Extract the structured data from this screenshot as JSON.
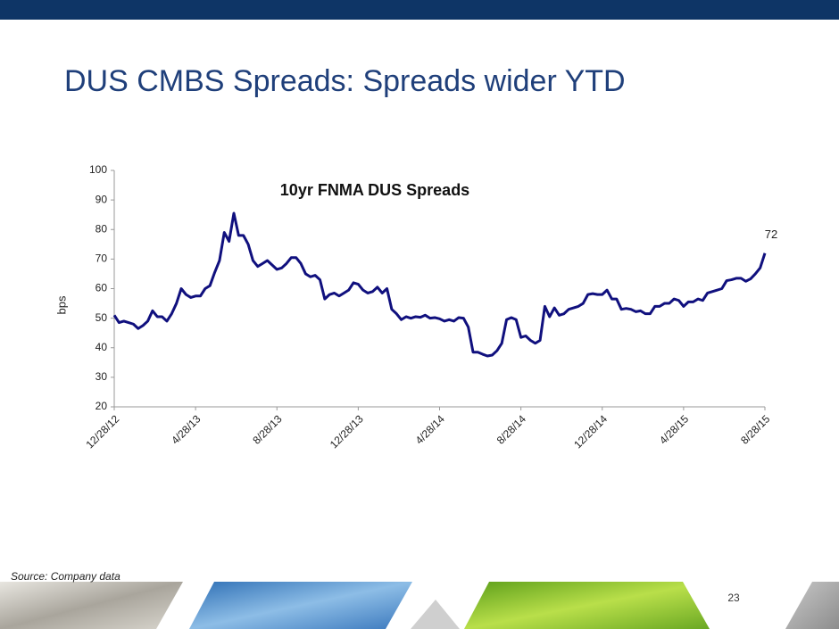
{
  "title": "DUS CMBS Spreads: Spreads wider YTD",
  "source": "Source: Company data",
  "page_number": "23",
  "chart_data": {
    "type": "line",
    "title": "10yr FNMA DUS Spreads",
    "y_label": "bps",
    "categories": [
      "12/28/12",
      null,
      null,
      null,
      null,
      null,
      null,
      null,
      null,
      null,
      null,
      null,
      null,
      null,
      null,
      null,
      null,
      "4/28/13",
      null,
      null,
      null,
      null,
      null,
      null,
      null,
      null,
      null,
      null,
      null,
      null,
      null,
      null,
      null,
      null,
      "8/28/13",
      null,
      null,
      null,
      null,
      null,
      null,
      null,
      null,
      null,
      null,
      null,
      null,
      null,
      null,
      null,
      null,
      "12/28/13",
      null,
      null,
      null,
      null,
      null,
      null,
      null,
      null,
      null,
      null,
      null,
      null,
      null,
      null,
      null,
      null,
      "4/28/14",
      null,
      null,
      null,
      null,
      null,
      null,
      null,
      null,
      null,
      null,
      null,
      null,
      null,
      null,
      null,
      null,
      "8/28/14",
      null,
      null,
      null,
      null,
      null,
      null,
      null,
      null,
      null,
      null,
      null,
      null,
      null,
      null,
      null,
      null,
      "12/28/14",
      null,
      null,
      null,
      null,
      null,
      null,
      null,
      null,
      null,
      null,
      null,
      null,
      null,
      null,
      null,
      null,
      "4/28/15",
      null,
      null,
      null,
      null,
      null,
      null,
      null,
      null,
      null,
      null,
      null,
      null,
      null,
      null,
      null,
      null,
      "8/28/15"
    ],
    "series": [
      {
        "name": "10yr FNMA DUS Spreads",
        "color": "#10107e",
        "values": [
          51,
          48.5,
          49,
          48.5,
          48,
          46.5,
          47.5,
          49,
          52.5,
          50.5,
          50.5,
          49,
          51.5,
          55,
          60,
          58,
          57,
          57.5,
          57.5,
          60,
          61,
          65.5,
          69.5,
          79,
          76,
          85.5,
          78,
          78,
          75,
          69.5,
          67.5,
          68.5,
          69.5,
          68,
          66.5,
          67,
          68.5,
          70.5,
          70.5,
          68.5,
          65,
          64,
          64.5,
          63,
          56.5,
          58,
          58.5,
          57.5,
          58.5,
          59.5,
          62,
          61.5,
          59.5,
          58.5,
          59,
          60.5,
          58.5,
          60,
          53,
          51.5,
          49.5,
          50.5,
          50,
          50.5,
          50.3,
          51,
          50,
          50.2,
          49.8,
          49,
          49.5,
          49,
          50.2,
          50,
          47,
          38.5,
          38.5,
          37.8,
          37.2,
          37.5,
          39,
          41.5,
          49.5,
          50.2,
          49.5,
          43.5,
          44,
          42.5,
          41.5,
          42.5,
          54,
          50.5,
          53.5,
          51,
          51.5,
          53,
          53.5,
          54,
          55,
          58,
          58.3,
          58,
          58,
          59.5,
          56.5,
          56.5,
          53,
          53.3,
          53,
          52.2,
          52.5,
          51.5,
          51.5,
          54,
          54,
          55,
          55,
          56.5,
          56,
          54,
          55.5,
          55.5,
          56.5,
          56,
          58.5,
          59,
          59.5,
          60,
          62.7,
          63,
          63.5,
          63.5,
          62.5,
          63.3,
          65,
          67,
          72
        ]
      }
    ],
    "ylim": [
      20,
      100
    ],
    "yticks": [
      20,
      30,
      40,
      50,
      60,
      70,
      80,
      90,
      100
    ],
    "grid": false
  }
}
